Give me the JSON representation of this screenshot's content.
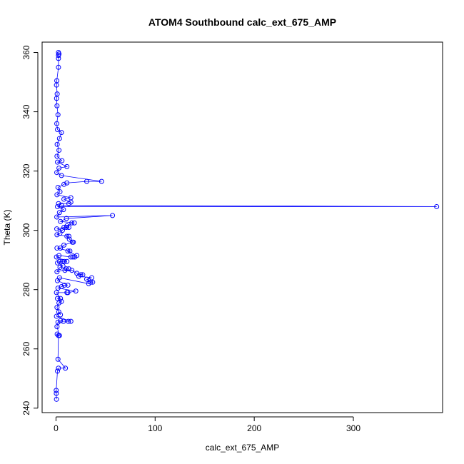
{
  "chart_data": {
    "type": "scatter",
    "title": "ATOM4 Southbound calc_ext_675_AMP",
    "xlabel": "calc_ext_675_AMP",
    "ylabel": "Theta (K)",
    "xlim": [
      -14,
      390
    ],
    "ylim": [
      238.5,
      363.5
    ],
    "xticks": [
      0,
      100,
      200,
      300
    ],
    "yticks": [
      240,
      260,
      280,
      300,
      320,
      340,
      360
    ],
    "grid": false,
    "legend": "none",
    "connect_points": true,
    "marker": "open-circle",
    "color": "#0000ff",
    "series": [
      {
        "points": [
          [
            0.5,
            243.0
          ],
          [
            0.3,
            245.0
          ],
          [
            0.2,
            246.0
          ],
          [
            1.5,
            252.5
          ],
          [
            2.5,
            253.5
          ],
          [
            9.5,
            253.5
          ],
          [
            2.0,
            256.5
          ],
          [
            2.5,
            264.5
          ],
          [
            1.2,
            265.0
          ],
          [
            3.5,
            264.5
          ],
          [
            1.0,
            267.5
          ],
          [
            2.0,
            269.0
          ],
          [
            4.5,
            269.5
          ],
          [
            7.5,
            269.3
          ],
          [
            12.5,
            269.3
          ],
          [
            15.0,
            269.3
          ],
          [
            0.5,
            271.0
          ],
          [
            2.8,
            272.5
          ],
          [
            4.5,
            271.5
          ],
          [
            1.0,
            274.0
          ],
          [
            3.0,
            275.5
          ],
          [
            5.5,
            276.0
          ],
          [
            1.5,
            277.0
          ],
          [
            4.5,
            277.0
          ],
          [
            0.5,
            279.0
          ],
          [
            11.0,
            279.0
          ],
          [
            12.0,
            279.0
          ],
          [
            20.0,
            279.5
          ],
          [
            2.0,
            280.5
          ],
          [
            5.5,
            281.0
          ],
          [
            8.5,
            281.5
          ],
          [
            12.0,
            281.5
          ],
          [
            1.5,
            283.0
          ],
          [
            3.5,
            284.0
          ],
          [
            33.0,
            282.0
          ],
          [
            35.0,
            282.5
          ],
          [
            37.0,
            282.5
          ],
          [
            31.0,
            283.5
          ],
          [
            36.0,
            284.0
          ],
          [
            23.0,
            284.5
          ],
          [
            25.0,
            285.0
          ],
          [
            27.0,
            285.0
          ],
          [
            21.0,
            285.5
          ],
          [
            16.0,
            286.5
          ],
          [
            9.0,
            286.5
          ],
          [
            10.5,
            287.0
          ],
          [
            13.0,
            287.0
          ],
          [
            1.0,
            286.0
          ],
          [
            4.0,
            287.5
          ],
          [
            7.0,
            288.0
          ],
          [
            1.5,
            289.0
          ],
          [
            3.5,
            289.5
          ],
          [
            6.5,
            289.5
          ],
          [
            8.5,
            289.5
          ],
          [
            11.0,
            289.5
          ],
          [
            0.5,
            291.0
          ],
          [
            3.0,
            291.5
          ],
          [
            15.0,
            291.0
          ],
          [
            17.0,
            291.0
          ],
          [
            19.0,
            291.0
          ],
          [
            21.0,
            291.5
          ],
          [
            12.0,
            293.0
          ],
          [
            14.0,
            293.0
          ],
          [
            1.0,
            294.0
          ],
          [
            4.5,
            294.0
          ],
          [
            8.0,
            295.0
          ],
          [
            16.5,
            296.0
          ],
          [
            17.5,
            296.0
          ],
          [
            13.5,
            297.0
          ],
          [
            11.0,
            298.0
          ],
          [
            13.0,
            298.0
          ],
          [
            1.0,
            298.5
          ],
          [
            4.0,
            299.0
          ],
          [
            6.5,
            300.0
          ],
          [
            0.8,
            300.5
          ],
          [
            8.0,
            301.0
          ],
          [
            10.5,
            301.0
          ],
          [
            13.0,
            301.0
          ],
          [
            11.0,
            301.5
          ],
          [
            16.0,
            302.5
          ],
          [
            18.5,
            302.5
          ],
          [
            4.5,
            303.0
          ],
          [
            10.5,
            304.0
          ],
          [
            57.0,
            305.0
          ],
          [
            0.8,
            304.5
          ],
          [
            3.5,
            306.0
          ],
          [
            7.5,
            307.0
          ],
          [
            1.5,
            308.0
          ],
          [
            384.0,
            308.0
          ],
          [
            5.5,
            308.5
          ],
          [
            2.5,
            309.0
          ],
          [
            13.0,
            309.0
          ],
          [
            15.0,
            309.5
          ],
          [
            8.0,
            310.5
          ],
          [
            15.0,
            311.0
          ],
          [
            1.0,
            312.0
          ],
          [
            4.0,
            313.0
          ],
          [
            2.0,
            314.5
          ],
          [
            8.0,
            315.5
          ],
          [
            11.0,
            316.0
          ],
          [
            31.0,
            316.5
          ],
          [
            46.0,
            316.5
          ],
          [
            5.5,
            318.5
          ],
          [
            0.8,
            319.5
          ],
          [
            3.0,
            321.0
          ],
          [
            11.0,
            321.5
          ],
          [
            1.5,
            323.0
          ],
          [
            6.0,
            323.5
          ],
          [
            1.0,
            325.0
          ],
          [
            3.0,
            327.0
          ],
          [
            1.2,
            329.0
          ],
          [
            3.5,
            331.0
          ],
          [
            5.5,
            333.0
          ],
          [
            1.5,
            334.0
          ],
          [
            0.8,
            336.0
          ],
          [
            2.0,
            339.0
          ],
          [
            1.0,
            342.0
          ],
          [
            0.6,
            344.5
          ],
          [
            1.2,
            346.0
          ],
          [
            0.5,
            349.0
          ],
          [
            0.8,
            350.5
          ],
          [
            2.5,
            355.0
          ],
          [
            2.5,
            358.0
          ],
          [
            2.5,
            359.0
          ],
          [
            3.0,
            359.5
          ],
          [
            2.5,
            360.0
          ]
        ]
      }
    ]
  }
}
